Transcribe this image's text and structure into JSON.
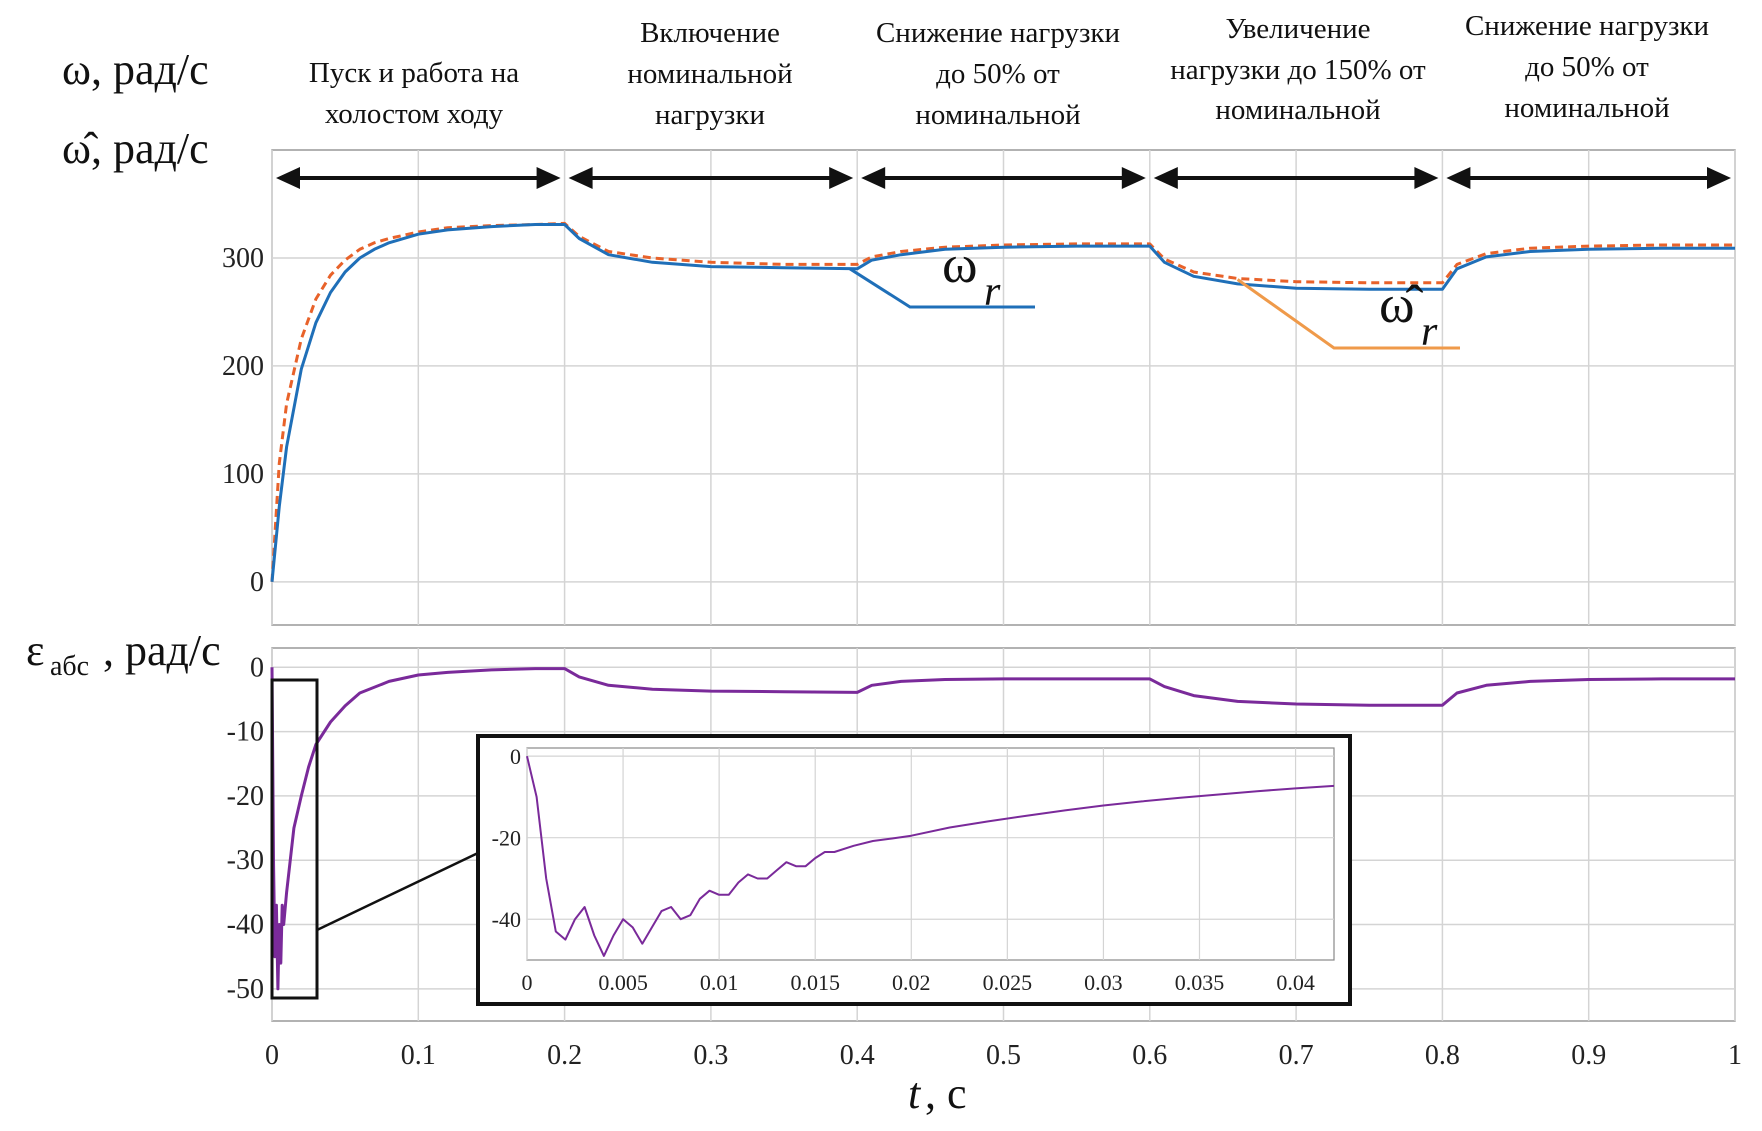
{
  "colors": {
    "omega": "#1f6fb8",
    "omega_hat": "#e8622a",
    "omega_hat_leader": "#ef9a4a",
    "error": "#7a2a9a",
    "arrow": "#111111",
    "grid": "#d4d4d4"
  },
  "labels": {
    "y_top_1": "ω, рад/с",
    "y_top_2": "ω̂, рад/с",
    "y_bottom_symbol": "ε",
    "y_bottom_sub": "абс",
    "y_bottom_unit": ", рад/с",
    "x_var": "t",
    "x_unit": ", с",
    "omega_symbol": "ω",
    "omega_sub": "r",
    "omega_hat_symbol": "ω̂",
    "omega_hat_sub": "r"
  },
  "phases": [
    {
      "lines": [
        "Пуск и работа на",
        "холостом ходу"
      ]
    },
    {
      "lines": [
        "Включение",
        "номинальной",
        "нагрузки"
      ]
    },
    {
      "lines": [
        "Снижение нагрузки",
        "до 50% от",
        "номинальной"
      ]
    },
    {
      "lines": [
        "Увеличение",
        "нагрузки до 150% от",
        "номинальной"
      ]
    },
    {
      "lines": [
        "Снижение нагрузки",
        "до 50% от",
        "номинальной"
      ]
    }
  ],
  "chart_data": [
    {
      "type": "line",
      "title": "",
      "xlabel": "t, с",
      "ylabel": "ω, рад/с; ω̂, рад/с",
      "xlim": [
        0,
        1
      ],
      "ylim": [
        -40,
        400
      ],
      "xticks": [
        "0",
        "0.1",
        "0.2",
        "0.3",
        "0.4",
        "0.5",
        "0.6",
        "0.7",
        "0.8",
        "0.9",
        "1"
      ],
      "yticks": [
        "0",
        "100",
        "200",
        "300"
      ],
      "grid": true,
      "phase_boundaries": [
        0,
        0.2,
        0.4,
        0.6,
        0.8,
        1.0
      ],
      "series": [
        {
          "name": "ω_r",
          "style": "solid",
          "x": [
            0,
            0.005,
            0.01,
            0.02,
            0.03,
            0.04,
            0.05,
            0.06,
            0.07,
            0.08,
            0.1,
            0.12,
            0.15,
            0.18,
            0.2,
            0.21,
            0.23,
            0.26,
            0.3,
            0.35,
            0.4,
            0.41,
            0.43,
            0.46,
            0.5,
            0.55,
            0.6,
            0.61,
            0.63,
            0.66,
            0.7,
            0.75,
            0.8,
            0.81,
            0.83,
            0.86,
            0.9,
            0.95,
            1.0
          ],
          "values": [
            0,
            70,
            125,
            197,
            240,
            268,
            287,
            300,
            308,
            314,
            322,
            326,
            329,
            331,
            331,
            318,
            303,
            296,
            292,
            291,
            290,
            298,
            303,
            308,
            310,
            311,
            311,
            296,
            283,
            276,
            272,
            271,
            271,
            290,
            301,
            306,
            308,
            309,
            309
          ]
        },
        {
          "name": "ω̂_r",
          "style": "dashed",
          "x": [
            0,
            0.005,
            0.01,
            0.02,
            0.03,
            0.04,
            0.05,
            0.06,
            0.07,
            0.08,
            0.1,
            0.12,
            0.15,
            0.18,
            0.2,
            0.21,
            0.23,
            0.26,
            0.3,
            0.35,
            0.4,
            0.41,
            0.43,
            0.46,
            0.5,
            0.55,
            0.6,
            0.61,
            0.63,
            0.66,
            0.7,
            0.75,
            0.8,
            0.81,
            0.83,
            0.86,
            0.9,
            0.95,
            1.0
          ],
          "values": [
            0,
            110,
            165,
            225,
            262,
            284,
            298,
            308,
            314,
            318,
            324,
            328,
            330,
            331,
            332,
            320,
            306,
            300,
            296,
            294,
            294,
            301,
            306,
            310,
            312,
            313,
            313,
            299,
            287,
            281,
            278,
            277,
            277,
            294,
            304,
            309,
            311,
            312,
            312
          ]
        }
      ],
      "annotations": [
        {
          "text": "ω_r",
          "points_to": [
            0.395,
            290
          ]
        },
        {
          "text": "ω̂_r",
          "points_to": [
            0.66,
            280
          ]
        }
      ]
    },
    {
      "type": "line",
      "title": "",
      "xlabel": "t, с",
      "ylabel": "ε_абс, рад/с",
      "xlim": [
        0,
        1
      ],
      "ylim": [
        -55,
        3
      ],
      "xticks": [
        "0",
        "0.1",
        "0.2",
        "0.3",
        "0.4",
        "0.5",
        "0.6",
        "0.7",
        "0.8",
        "0.9",
        "1"
      ],
      "yticks": [
        "0",
        "-10",
        "-20",
        "-30",
        "-40",
        "-50"
      ],
      "grid": true,
      "series": [
        {
          "name": "ε_абс",
          "style": "solid",
          "x": [
            0,
            0.001,
            0.002,
            0.003,
            0.004,
            0.005,
            0.006,
            0.007,
            0.008,
            0.01,
            0.015,
            0.02,
            0.025,
            0.03,
            0.04,
            0.05,
            0.06,
            0.08,
            0.1,
            0.12,
            0.15,
            0.18,
            0.2,
            0.21,
            0.23,
            0.26,
            0.3,
            0.35,
            0.4,
            0.41,
            0.43,
            0.46,
            0.5,
            0.55,
            0.6,
            0.61,
            0.63,
            0.66,
            0.7,
            0.75,
            0.8,
            0.81,
            0.83,
            0.86,
            0.9,
            0.95,
            1.0
          ],
          "values": [
            0,
            -30,
            -45,
            -37,
            -50,
            -40,
            -46,
            -37,
            -40,
            -35,
            -25,
            -20,
            -15.5,
            -12,
            -8.5,
            -6,
            -4,
            -2.2,
            -1.2,
            -0.8,
            -0.4,
            -0.2,
            -0.2,
            -1.5,
            -2.8,
            -3.4,
            -3.7,
            -3.8,
            -3.9,
            -2.8,
            -2.2,
            -1.9,
            -1.8,
            -1.8,
            -1.8,
            -3,
            -4.4,
            -5.3,
            -5.7,
            -5.9,
            -5.9,
            -4,
            -2.8,
            -2.2,
            -1.9,
            -1.8,
            -1.8
          ]
        }
      ]
    },
    {
      "type": "line",
      "title": "",
      "xlabel": "",
      "ylabel": "",
      "xlim": [
        0,
        0.042
      ],
      "ylim": [
        -50,
        2
      ],
      "xticks": [
        "0",
        "0.005",
        "0.01",
        "0.015",
        "0.02",
        "0.025",
        "0.03",
        "0.035",
        "0.04"
      ],
      "yticks": [
        "0",
        "-20",
        "-40"
      ],
      "grid": true,
      "series": [
        {
          "name": "ε_абс (zoom)",
          "style": "solid",
          "x": [
            0,
            0.0005,
            0.001,
            0.0015,
            0.002,
            0.0025,
            0.003,
            0.0035,
            0.004,
            0.0045,
            0.005,
            0.0055,
            0.006,
            0.0065,
            0.007,
            0.0075,
            0.008,
            0.0085,
            0.009,
            0.0095,
            0.01,
            0.0105,
            0.011,
            0.0115,
            0.012,
            0.0125,
            0.013,
            0.0135,
            0.014,
            0.0145,
            0.015,
            0.0155,
            0.016,
            0.017,
            0.018,
            0.019,
            0.02,
            0.022,
            0.024,
            0.026,
            0.028,
            0.03,
            0.032,
            0.034,
            0.036,
            0.038,
            0.04,
            0.042
          ],
          "values": [
            0,
            -10,
            -30,
            -43,
            -45,
            -40,
            -37,
            -44,
            -49,
            -44,
            -40,
            -42,
            -46,
            -42,
            -38,
            -37,
            -40,
            -39,
            -35,
            -33,
            -34,
            -34,
            -31,
            -29,
            -30,
            -30,
            -28,
            -26,
            -27,
            -27,
            -25,
            -23.5,
            -23.5,
            -22,
            -20.8,
            -20.2,
            -19.5,
            -17.5,
            -16,
            -14.6,
            -13.3,
            -12.1,
            -11.1,
            -10.2,
            -9.4,
            -8.6,
            -7.9,
            -7.3
          ]
        }
      ]
    }
  ]
}
